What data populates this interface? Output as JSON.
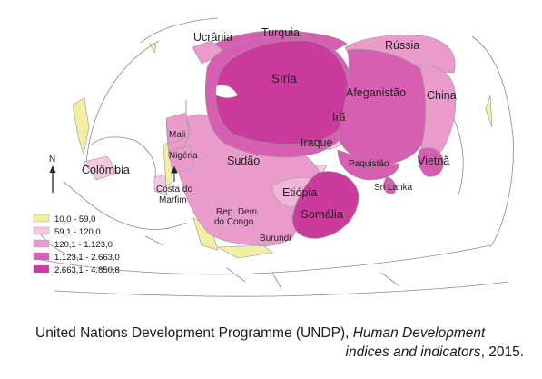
{
  "colors": {
    "c1": "#f2eea4",
    "c2": "#f3c7df",
    "c3": "#e99ccc",
    "c4": "#d65fb2",
    "c5": "#cb3a9d",
    "outline": "#888888"
  },
  "countries": {
    "ucrania": "Ucrânia",
    "turquia": "Turquia",
    "russia": "Rússia",
    "siria": "Síria",
    "afeganistao": "Afeganistão",
    "china": "China",
    "ira": "Irã",
    "iraque": "Iraque",
    "mali": "Mali",
    "nigeria": "Nigéria",
    "colombia": "Colômbia",
    "sudao": "Sudão",
    "paquistao": "Paquistão",
    "vietna": "Vietnã",
    "sri_lanka": "Sri Lanka",
    "etiopia": "Etiópia",
    "costa_do_marfim_1": "Costa do",
    "costa_do_marfim_2": "Marfim",
    "rep_dem_congo_1": "Rep. Dem.",
    "rep_dem_congo_2": "do Congo",
    "somalia": "Somália",
    "burundi": "Burundi"
  },
  "compass": {
    "label": "N",
    "icon": "north-arrow"
  },
  "legend": [
    {
      "label": "10,0 - 59,0",
      "color": "#f2eea4"
    },
    {
      "label": "59,1 - 120,0",
      "color": "#f3c7df"
    },
    {
      "label": "120,1 - 1.123,0",
      "color": "#e99ccc"
    },
    {
      "label": "1.123,1 - 2.663,0",
      "color": "#d65fb2"
    },
    {
      "label": "2.663,1 - 4.850,8",
      "color": "#cb3a9d"
    }
  ],
  "caption": {
    "part1": "United Nations Development Programme (UNDP), ",
    "part2_italic": "Human Development",
    "part3_italic": "indices and indicators",
    "part4": ", 2015."
  }
}
